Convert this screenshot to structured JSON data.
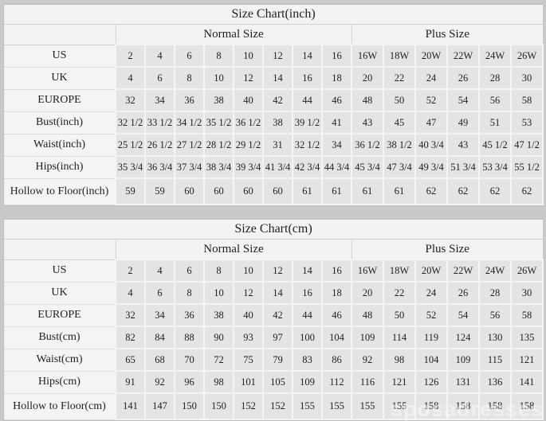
{
  "page": {
    "watermark": "sposadresses"
  },
  "colors": {
    "page_background": "#c9c9c9",
    "table_background": "#f3f3f3",
    "data_cell_background": "#e4e4e4",
    "text": "#1f1f1f"
  },
  "chart_data": [
    {
      "type": "table",
      "title": "Size Chart(inch)",
      "column_groups": [
        {
          "label": "Normal Size",
          "span": 8
        },
        {
          "label": "Plus Size",
          "span": 6
        }
      ],
      "rows": [
        {
          "label": "US",
          "values": [
            "2",
            "4",
            "6",
            "8",
            "10",
            "12",
            "14",
            "16",
            "16W",
            "18W",
            "20W",
            "22W",
            "24W",
            "26W"
          ]
        },
        {
          "label": "UK",
          "values": [
            "4",
            "6",
            "8",
            "10",
            "12",
            "14",
            "16",
            "18",
            "20",
            "22",
            "24",
            "26",
            "28",
            "30"
          ]
        },
        {
          "label": "EUROPE",
          "values": [
            "32",
            "34",
            "36",
            "38",
            "40",
            "42",
            "44",
            "46",
            "48",
            "50",
            "52",
            "54",
            "56",
            "58"
          ]
        },
        {
          "label": "Bust(inch)",
          "values": [
            "32 1/2",
            "33 1/2",
            "34 1/2",
            "35 1/2",
            "36 1/2",
            "38",
            "39 1/2",
            "41",
            "43",
            "45",
            "47",
            "49",
            "51",
            "53"
          ]
        },
        {
          "label": "Waist(inch)",
          "values": [
            "25 1/2",
            "26 1/2",
            "27 1/2",
            "28 1/2",
            "29 1/2",
            "31",
            "32 1/2",
            "34",
            "36 1/2",
            "38 1/2",
            "40 3/4",
            "43",
            "45 1/2",
            "47 1/2"
          ]
        },
        {
          "label": "Hips(inch)",
          "values": [
            "35 3/4",
            "36 3/4",
            "37 3/4",
            "38 3/4",
            "39 3/4",
            "41 3/4",
            "42 3/4",
            "44 3/4",
            "45 3/4",
            "47 3/4",
            "49 3/4",
            "51 3/4",
            "53 3/4",
            "55 1/2"
          ]
        },
        {
          "label": "Hollow to Floor(inch)",
          "values": [
            "59",
            "59",
            "60",
            "60",
            "60",
            "60",
            "61",
            "61",
            "61",
            "61",
            "62",
            "62",
            "62",
            "62"
          ]
        }
      ]
    },
    {
      "type": "table",
      "title": "Size Chart(cm)",
      "column_groups": [
        {
          "label": "Normal Size",
          "span": 8
        },
        {
          "label": "Plus Size",
          "span": 6
        }
      ],
      "rows": [
        {
          "label": "US",
          "values": [
            "2",
            "4",
            "6",
            "8",
            "10",
            "12",
            "14",
            "16",
            "16W",
            "18W",
            "20W",
            "22W",
            "24W",
            "26W"
          ]
        },
        {
          "label": "UK",
          "values": [
            "4",
            "6",
            "8",
            "10",
            "12",
            "14",
            "16",
            "18",
            "20",
            "22",
            "24",
            "26",
            "28",
            "30"
          ]
        },
        {
          "label": "EUROPE",
          "values": [
            "32",
            "34",
            "36",
            "38",
            "40",
            "42",
            "44",
            "46",
            "48",
            "50",
            "52",
            "54",
            "56",
            "58"
          ]
        },
        {
          "label": "Bust(cm)",
          "values": [
            "82",
            "84",
            "88",
            "90",
            "93",
            "97",
            "100",
            "104",
            "109",
            "114",
            "119",
            "124",
            "130",
            "135"
          ]
        },
        {
          "label": "Waist(cm)",
          "values": [
            "65",
            "68",
            "70",
            "72",
            "75",
            "79",
            "83",
            "86",
            "92",
            "98",
            "104",
            "109",
            "115",
            "121"
          ]
        },
        {
          "label": "Hips(cm)",
          "values": [
            "91",
            "92",
            "96",
            "98",
            "101",
            "105",
            "109",
            "112",
            "116",
            "121",
            "126",
            "131",
            "136",
            "141"
          ]
        },
        {
          "label": "Hollow to Floor(cm)",
          "values": [
            "141",
            "147",
            "150",
            "150",
            "152",
            "152",
            "155",
            "155",
            "155",
            "155",
            "158",
            "158",
            "158",
            "158"
          ]
        }
      ]
    }
  ]
}
